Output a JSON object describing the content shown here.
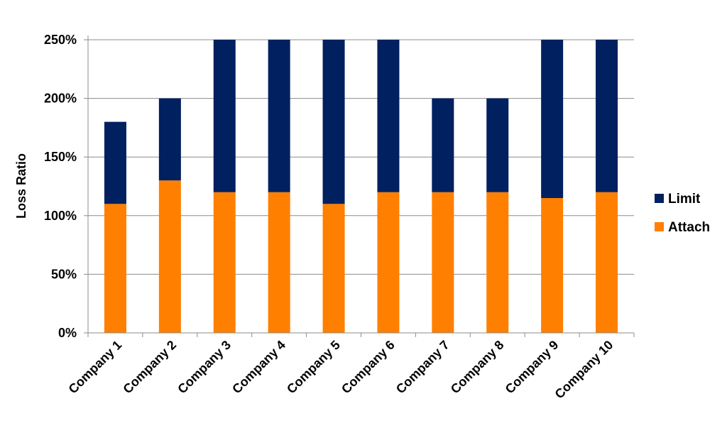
{
  "chart_data": {
    "type": "bar",
    "stacked": true,
    "categories": [
      "Company 1",
      "Company 2",
      "Company 3",
      "Company 4",
      "Company 5",
      "Company 6",
      "Company 7",
      "Company 8",
      "Company 9",
      "Company 10"
    ],
    "series": [
      {
        "name": "Attach",
        "color": "#ff7f00",
        "values": [
          1.1,
          1.3,
          1.2,
          1.2,
          1.1,
          1.2,
          1.2,
          1.2,
          1.15,
          1.2
        ]
      },
      {
        "name": "Limit",
        "color": "#002060",
        "values": [
          0.7,
          0.7,
          1.3,
          1.3,
          1.4,
          1.3,
          0.8,
          0.8,
          1.35,
          1.3
        ]
      }
    ],
    "title": "",
    "xlabel": "",
    "ylabel": "Loss Ratio",
    "ylim": [
      0,
      2.5
    ],
    "yticks": [
      0,
      0.5,
      1.0,
      1.5,
      2.0,
      2.5
    ],
    "ytick_labels": [
      "0%",
      "50%",
      "100%",
      "150%",
      "200%",
      "250%"
    ],
    "grid": "horizontal",
    "legend": {
      "position": "right",
      "entries": [
        "Limit",
        "Attach"
      ]
    }
  }
}
